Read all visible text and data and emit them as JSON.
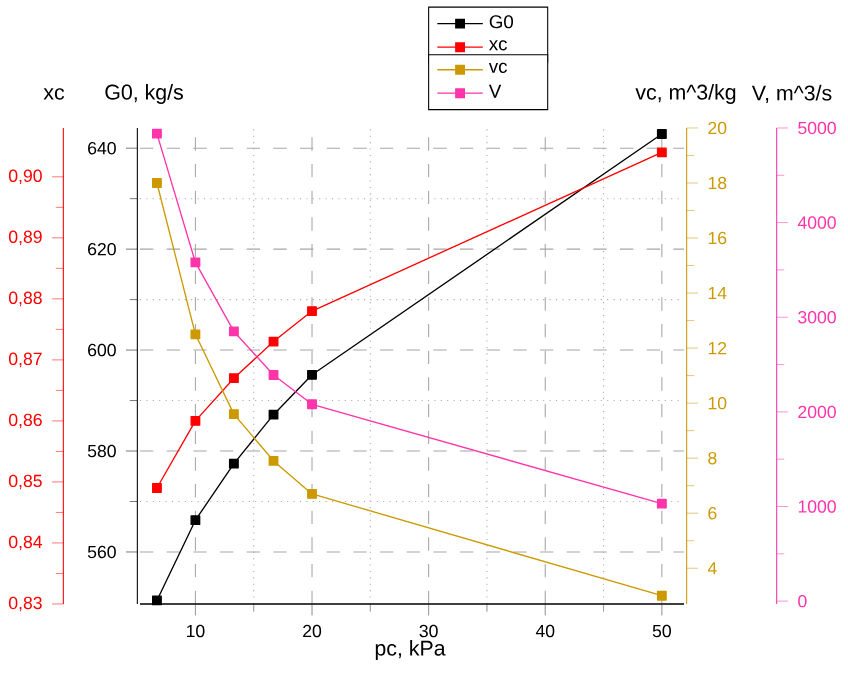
{
  "chart_data": [
    {
      "type": "line",
      "xlabel": "pc, kPa",
      "ylabel": "G0, kg/s",
      "y2label": "xc",
      "x": [
        6.7,
        10,
        13.3,
        16.7,
        20,
        50
      ],
      "xlim": [
        5.25,
        51.9
      ],
      "xticks": [
        10,
        20,
        30,
        40,
        50
      ],
      "ylim": [
        549.7,
        644
      ],
      "yticks": [
        560,
        580,
        600,
        620,
        640
      ],
      "y2lim": [
        0.83,
        0.908
      ],
      "y2ticks": [
        {
          "value": 0.83,
          "label": "0,83"
        },
        {
          "value": 0.84,
          "label": "0,84"
        },
        {
          "value": 0.85,
          "label": "0,85"
        },
        {
          "value": 0.86,
          "label": "0,86"
        },
        {
          "value": 0.87,
          "label": "0,87"
        },
        {
          "value": 0.88,
          "label": "0,88"
        },
        {
          "value": 0.89,
          "label": "0,89"
        },
        {
          "value": 0.9,
          "label": "0,90"
        }
      ],
      "series": [
        {
          "name": "G0",
          "color": "#000000",
          "values": [
            550.4,
            566.3,
            577.5,
            587.2,
            595.1,
            642.8
          ]
        },
        {
          "name": "xc",
          "color": "#ff0000",
          "axis": "y2",
          "values": [
            0.849,
            0.86,
            0.867,
            0.873,
            0.878,
            0.904
          ]
        }
      ],
      "grid": true,
      "legend": "top",
      "marker": "square",
      "line_style": "solid"
    },
    {
      "type": "line",
      "ylabel": "vc, m^3/kg",
      "y2label": "V, m^3/s",
      "x": [
        6.7,
        10,
        13.3,
        16.7,
        20,
        50
      ],
      "xlim": [
        5.25,
        51.9
      ],
      "xticks": [
        10,
        20,
        30,
        40,
        50
      ],
      "tick_labels": "y",
      "ylim": [
        2.7,
        20
      ],
      "yticks": [
        4,
        6,
        8,
        10,
        12,
        14,
        16,
        18,
        20
      ],
      "y2lim": [
        -30,
        5000
      ],
      "y2ticks": [
        0,
        1000,
        2000,
        3000,
        4000,
        5000
      ],
      "series": [
        {
          "name": "vc",
          "color": "#cc9900",
          "values": [
            18.0,
            12.5,
            9.6,
            7.9,
            6.7,
            3.0
          ]
        },
        {
          "name": "V",
          "color": "#ff33aa",
          "axis": "y2",
          "values": [
            4940,
            3580,
            2850,
            2390,
            2080,
            1030
          ]
        }
      ],
      "legend": "top",
      "marker": "square",
      "line_style": "solid"
    }
  ]
}
